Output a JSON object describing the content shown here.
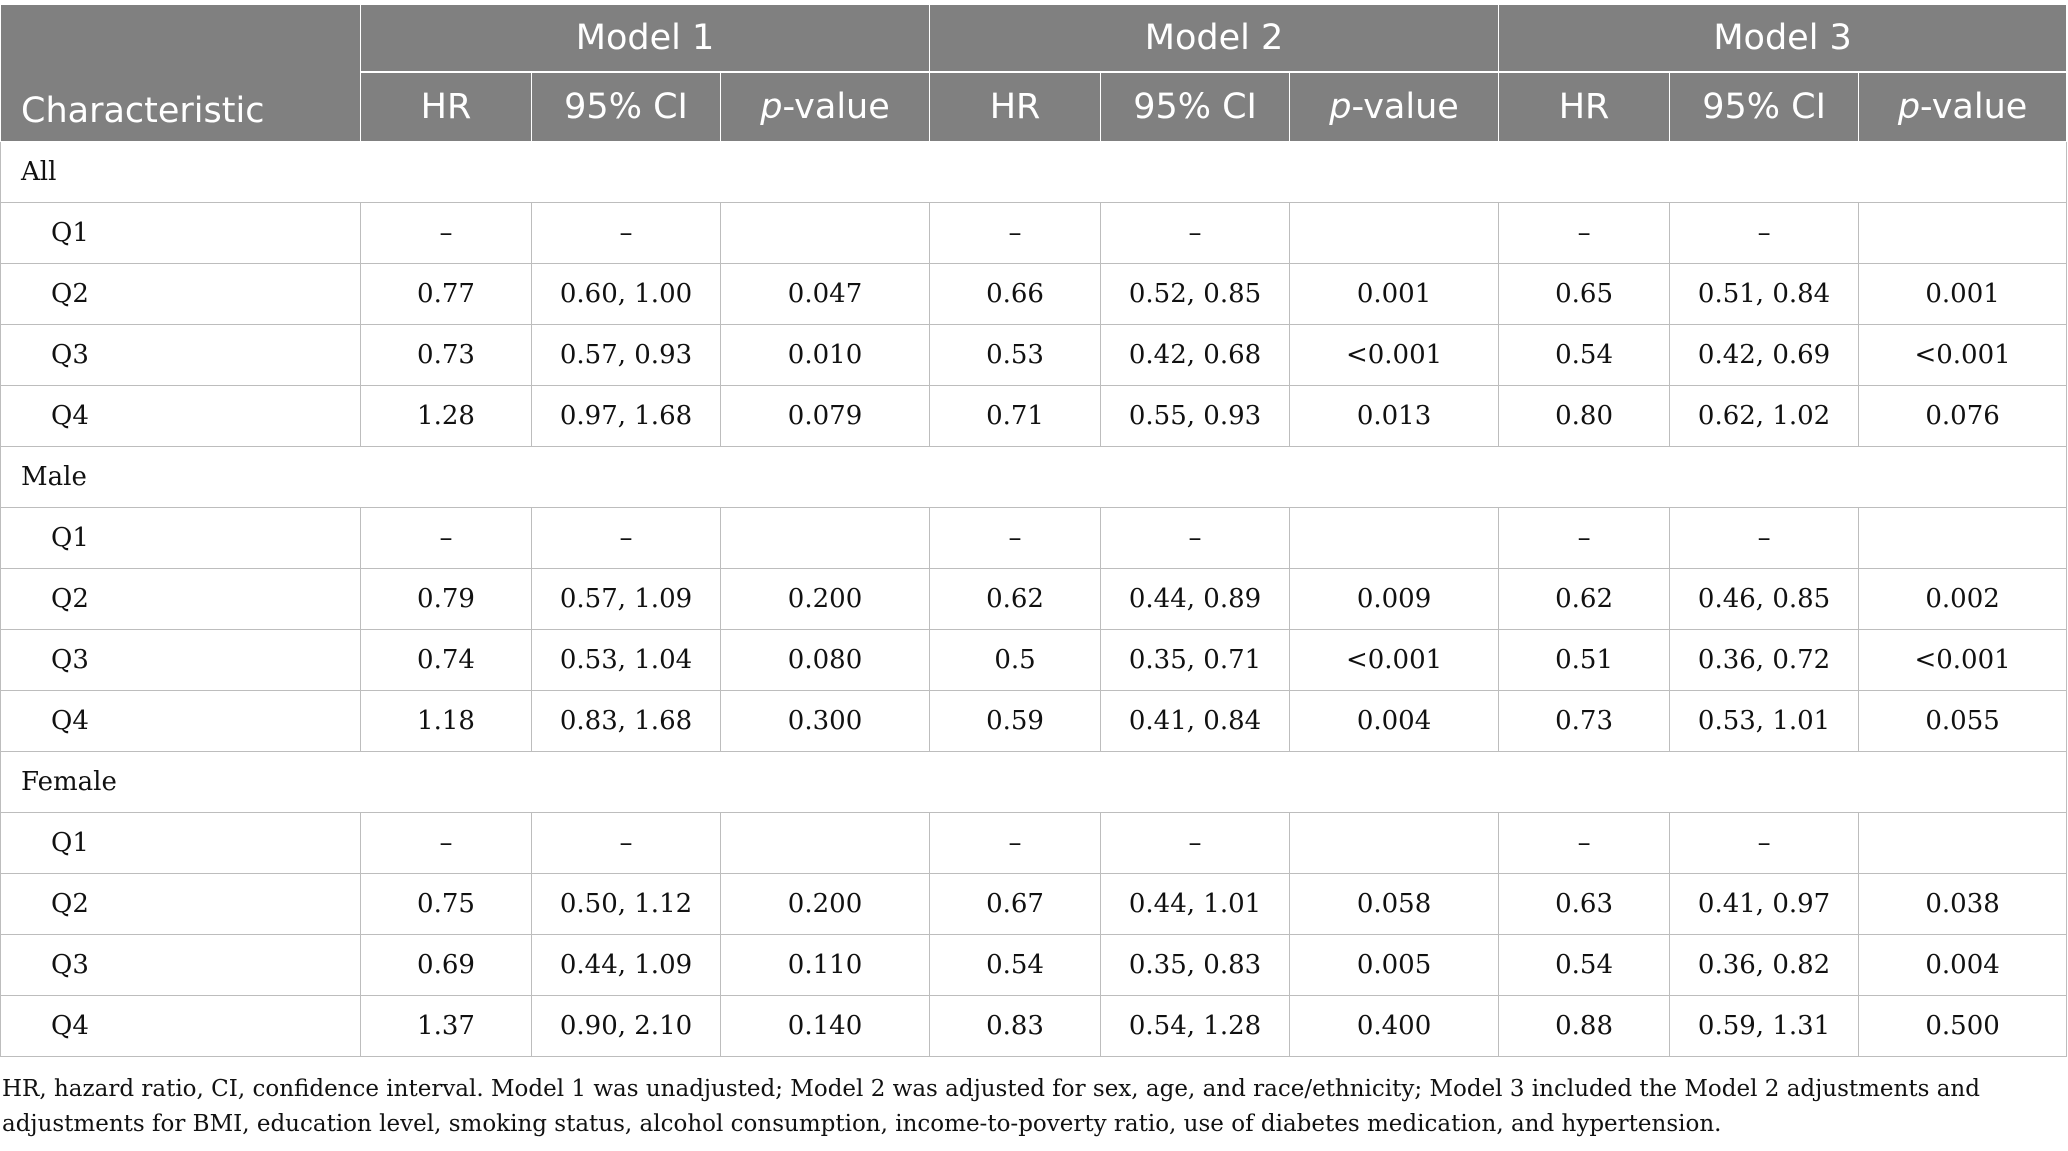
{
  "header": {
    "characteristic": "Characteristic",
    "models": [
      "Model 1",
      "Model 2",
      "Model 3"
    ],
    "columns": {
      "hr": "HR",
      "ci": "95% CI",
      "p_italic": "p",
      "p_rest": "-value"
    }
  },
  "groups": [
    {
      "label": "All",
      "rows": [
        {
          "q": "Q1",
          "values": [
            "–",
            "–",
            "",
            "–",
            "–",
            "",
            "–",
            "–",
            ""
          ]
        },
        {
          "q": "Q2",
          "values": [
            "0.77",
            "0.60, 1.00",
            "0.047",
            "0.66",
            "0.52, 0.85",
            "0.001",
            "0.65",
            "0.51, 0.84",
            "0.001"
          ]
        },
        {
          "q": "Q3",
          "values": [
            "0.73",
            "0.57, 0.93",
            "0.010",
            "0.53",
            "0.42, 0.68",
            "<0.001",
            "0.54",
            "0.42, 0.69",
            "<0.001"
          ]
        },
        {
          "q": "Q4",
          "values": [
            "1.28",
            "0.97, 1.68",
            "0.079",
            "0.71",
            "0.55, 0.93",
            "0.013",
            "0.80",
            "0.62, 1.02",
            "0.076"
          ]
        }
      ]
    },
    {
      "label": "Male",
      "rows": [
        {
          "q": "Q1",
          "values": [
            "–",
            "–",
            "",
            "–",
            "–",
            "",
            "–",
            "–",
            ""
          ]
        },
        {
          "q": "Q2",
          "values": [
            "0.79",
            "0.57, 1.09",
            "0.200",
            "0.62",
            "0.44, 0.89",
            "0.009",
            "0.62",
            "0.46, 0.85",
            "0.002"
          ]
        },
        {
          "q": "Q3",
          "values": [
            "0.74",
            "0.53, 1.04",
            "0.080",
            "0.5",
            "0.35, 0.71",
            "<0.001",
            "0.51",
            "0.36, 0.72",
            "<0.001"
          ]
        },
        {
          "q": "Q4",
          "values": [
            "1.18",
            "0.83, 1.68",
            "0.300",
            "0.59",
            "0.41, 0.84",
            "0.004",
            "0.73",
            "0.53, 1.01",
            "0.055"
          ]
        }
      ]
    },
    {
      "label": "Female",
      "rows": [
        {
          "q": "Q1",
          "values": [
            "–",
            "–",
            "",
            "–",
            "–",
            "",
            "–",
            "–",
            ""
          ]
        },
        {
          "q": "Q2",
          "values": [
            "0.75",
            "0.50, 1.12",
            "0.200",
            "0.67",
            "0.44, 1.01",
            "0.058",
            "0.63",
            "0.41, 0.97",
            "0.038"
          ]
        },
        {
          "q": "Q3",
          "values": [
            "0.69",
            "0.44, 1.09",
            "0.110",
            "0.54",
            "0.35, 0.83",
            "0.005",
            "0.54",
            "0.36, 0.82",
            "0.004"
          ]
        },
        {
          "q": "Q4",
          "values": [
            "1.37",
            "0.90, 2.10",
            "0.140",
            "0.83",
            "0.54, 1.28",
            "0.400",
            "0.88",
            "0.59, 1.31",
            "0.500"
          ]
        }
      ]
    }
  ],
  "footnote": "HR, hazard ratio, CI, confidence interval. Model 1 was unadjusted; Model 2 was adjusted for sex, age, and race/ethnicity; Model 3 included the Model 2 adjustments and adjustments for BMI, education level, smoking status, alcohol consumption, income-to-poverty ratio, use of diabetes medication, and hypertension.",
  "colors": {
    "header_bg": "#808080",
    "header_text": "#ffffff",
    "grid": "#bdbdbd"
  }
}
